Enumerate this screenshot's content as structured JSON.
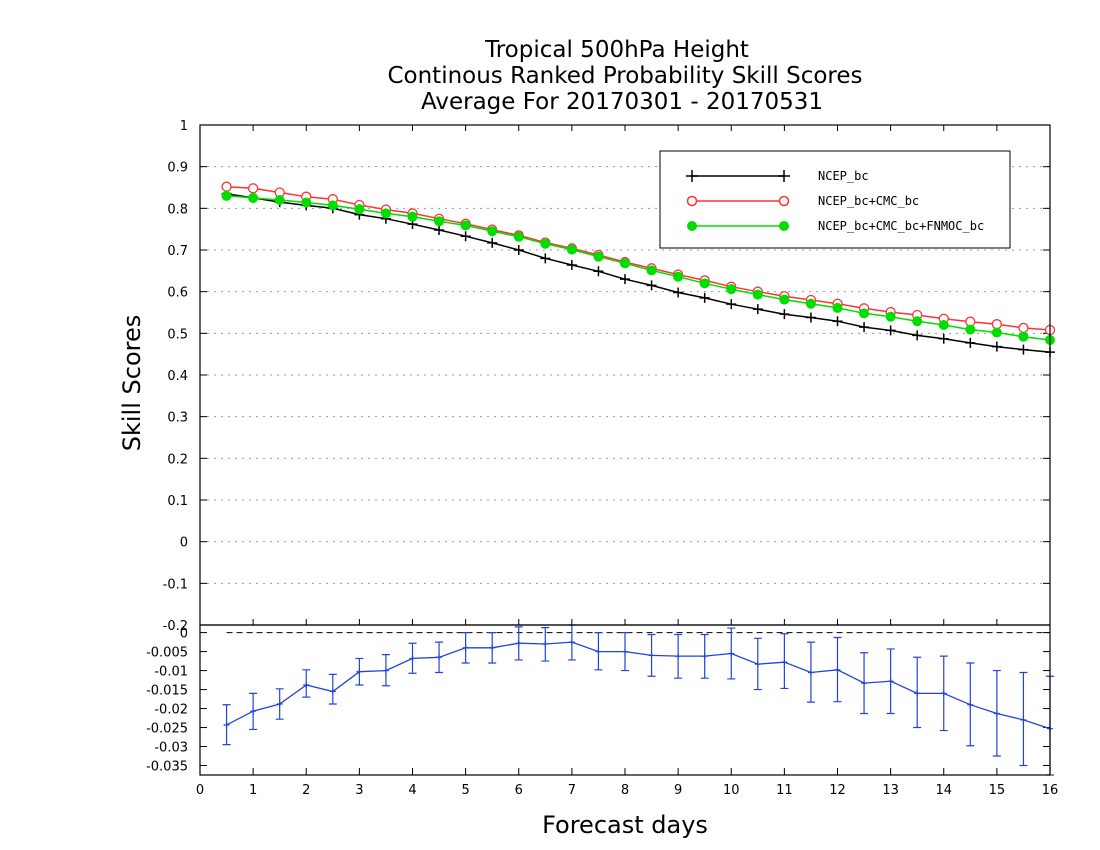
{
  "chart_data": [
    {
      "type": "line",
      "title_lines": [
        "Tropical 500hPa Height",
        "Continous Ranked Probability Skill Scores",
        "Average For 20170301 - 20170531"
      ],
      "ylabel": "Skill Scores",
      "xlim": [
        0,
        16
      ],
      "ylim": [
        -0.2,
        1.0
      ],
      "y_ticks": [
        "-0.2",
        "-0.1",
        "0",
        "0.1",
        "0.2",
        "0.3",
        "0.4",
        "0.5",
        "0.6",
        "0.7",
        "0.8",
        "0.9",
        "1"
      ],
      "y_tick_values": [
        -0.2,
        -0.1,
        0,
        0.1,
        0.2,
        0.3,
        0.4,
        0.5,
        0.6,
        0.7,
        0.8,
        0.9,
        1.0
      ],
      "grid": "horizontal dotted",
      "legend_position": "top-right",
      "x": [
        0.5,
        1,
        1.5,
        2,
        2.5,
        3,
        3.5,
        4,
        4.5,
        5,
        5.5,
        6,
        6.5,
        7,
        7.5,
        8,
        8.5,
        9,
        9.5,
        10,
        10.5,
        11,
        11.5,
        12,
        12.5,
        13,
        13.5,
        14,
        14.5,
        15,
        15.5,
        16
      ],
      "series": [
        {
          "name": "NCEP_bc",
          "color": "#000000",
          "marker": "plus",
          "values": [
            0.835,
            0.825,
            0.815,
            0.807,
            0.8,
            0.785,
            0.775,
            0.762,
            0.748,
            0.733,
            0.717,
            0.7,
            0.68,
            0.664,
            0.649,
            0.63,
            0.615,
            0.598,
            0.585,
            0.57,
            0.558,
            0.546,
            0.538,
            0.529,
            0.515,
            0.507,
            0.495,
            0.487,
            0.477,
            0.468,
            0.461,
            0.455
          ]
        },
        {
          "name": "NCEP_bc+CMC_bc",
          "color": "#ff3333",
          "marker": "open-circle",
          "values": [
            0.852,
            0.848,
            0.838,
            0.828,
            0.822,
            0.808,
            0.797,
            0.788,
            0.775,
            0.763,
            0.749,
            0.735,
            0.718,
            0.704,
            0.688,
            0.671,
            0.656,
            0.641,
            0.627,
            0.612,
            0.6,
            0.589,
            0.58,
            0.571,
            0.56,
            0.551,
            0.544,
            0.535,
            0.528,
            0.522,
            0.513,
            0.508
          ]
        },
        {
          "name": "NCEP_bc+CMC_bc+FNMOC_bc",
          "color": "#00dd00",
          "marker": "filled-circle",
          "values": [
            0.83,
            0.825,
            0.82,
            0.814,
            0.807,
            0.798,
            0.788,
            0.78,
            0.769,
            0.759,
            0.745,
            0.732,
            0.715,
            0.701,
            0.684,
            0.668,
            0.651,
            0.636,
            0.62,
            0.606,
            0.593,
            0.581,
            0.571,
            0.561,
            0.548,
            0.54,
            0.529,
            0.52,
            0.509,
            0.502,
            0.492,
            0.484
          ]
        }
      ]
    },
    {
      "type": "line",
      "xlabel": "Forecast days",
      "xlim": [
        0,
        16
      ],
      "x_ticks": [
        "0",
        "1",
        "2",
        "3",
        "4",
        "5",
        "6",
        "7",
        "8",
        "9",
        "10",
        "11",
        "12",
        "13",
        "14",
        "15",
        "16"
      ],
      "ylim": [
        -0.0375,
        0.002
      ],
      "y_ticks": [
        "0",
        "-0.005",
        "-0.01",
        "-0.015",
        "-0.02",
        "-0.025",
        "-0.03",
        "-0.035"
      ],
      "y_tick_values": [
        0,
        -0.005,
        -0.01,
        -0.015,
        -0.02,
        -0.025,
        -0.03,
        -0.035
      ],
      "reference_line": 0,
      "series": [
        {
          "color": "#2244dd",
          "marker": "plus",
          "x": [
            0.5,
            1,
            1.5,
            2,
            2.5,
            3,
            3.5,
            4,
            4.5,
            5,
            5.5,
            6,
            6.5,
            7,
            7.5,
            8,
            8.5,
            9,
            9.5,
            10,
            10.5,
            11,
            11.5,
            12,
            12.5,
            13,
            13.5,
            14,
            14.5,
            15,
            15.5,
            16
          ],
          "values": [
            -0.0243,
            -0.0207,
            -0.0188,
            -0.0138,
            -0.0155,
            -0.0103,
            -0.01,
            -0.0068,
            -0.0065,
            -0.004,
            -0.004,
            -0.0028,
            -0.003,
            -0.0025,
            -0.005,
            -0.005,
            -0.006,
            -0.0062,
            -0.0062,
            -0.0055,
            -0.0083,
            -0.0078,
            -0.0105,
            -0.0098,
            -0.0133,
            -0.0128,
            -0.016,
            -0.016,
            -0.019,
            -0.0213,
            -0.023,
            -0.0253
          ],
          "error_low": [
            -0.0295,
            -0.0255,
            -0.0228,
            -0.017,
            -0.0188,
            -0.0138,
            -0.014,
            -0.0107,
            -0.0105,
            -0.008,
            -0.008,
            -0.0072,
            -0.0075,
            -0.0072,
            -0.0098,
            -0.01,
            -0.0115,
            -0.012,
            -0.012,
            -0.0122,
            -0.015,
            -0.0147,
            -0.0183,
            -0.0182,
            -0.0213,
            -0.0213,
            -0.025,
            -0.0258,
            -0.0298,
            -0.0325,
            -0.035,
            -0.0375
          ],
          "error_high": [
            -0.019,
            -0.016,
            -0.0148,
            -0.0098,
            -0.011,
            -0.0068,
            -0.0058,
            -0.0028,
            -0.0025,
            0.0,
            0.0,
            0.0015,
            0.0013,
            0.0023,
            0.0,
            0.0,
            -0.0005,
            -0.0005,
            -0.0005,
            0.0012,
            -0.0015,
            -0.0003,
            -0.0025,
            -0.0013,
            -0.0053,
            -0.0043,
            -0.0065,
            -0.0062,
            -0.008,
            -0.01,
            -0.0105,
            -0.0115
          ]
        }
      ]
    }
  ]
}
